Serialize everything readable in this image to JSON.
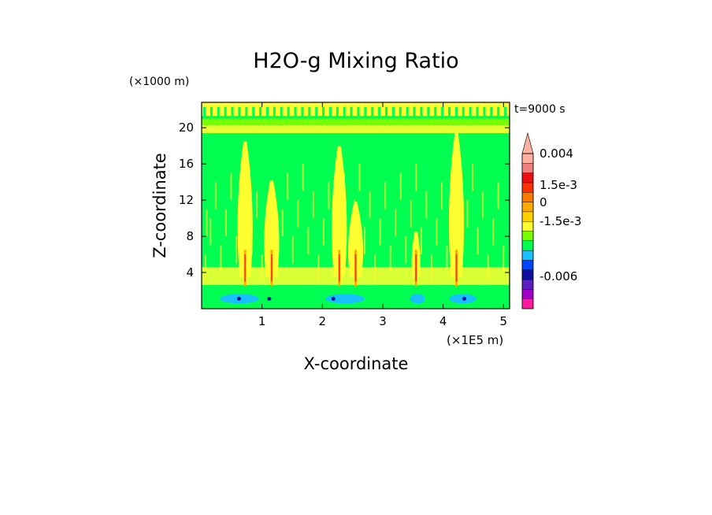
{
  "chart_data": {
    "type": "heatmap",
    "title": "H2O-g Mixing Ratio",
    "xlabel": "X-coordinate",
    "ylabel": "Z-coordinate",
    "x_units": "(×1E5 m)",
    "y_units": "(×1000 m)",
    "time_label": "t=9000 s",
    "xlim": [
      0,
      5.1
    ],
    "ylim": [
      0,
      22.8
    ],
    "x_ticks": [
      1,
      2,
      3,
      4,
      5
    ],
    "y_ticks": [
      4,
      8,
      12,
      16,
      20
    ],
    "colorbar": {
      "colors": [
        "#ff1a9f",
        "#a000c8",
        "#5a20c0",
        "#1010a0",
        "#0044ff",
        "#18c0ff",
        "#00ff50",
        "#7aff00",
        "#ffff30",
        "#ffd000",
        "#ffaa00",
        "#ff7a00",
        "#ff3000",
        "#e81010",
        "#f08080",
        "#ffb0a0"
      ],
      "tick_labels": [
        "0.004",
        "1.5e-3",
        "0",
        "-1.5e-3",
        "-0.006"
      ]
    },
    "plumes_x": [
      0.72,
      1.16,
      2.28,
      2.55,
      3.55,
      4.22
    ],
    "background_colors": {
      "low": "#00ff50",
      "high_band": "#ffff30",
      "mid": "#7aff00",
      "surface": "#18c0ff"
    }
  }
}
